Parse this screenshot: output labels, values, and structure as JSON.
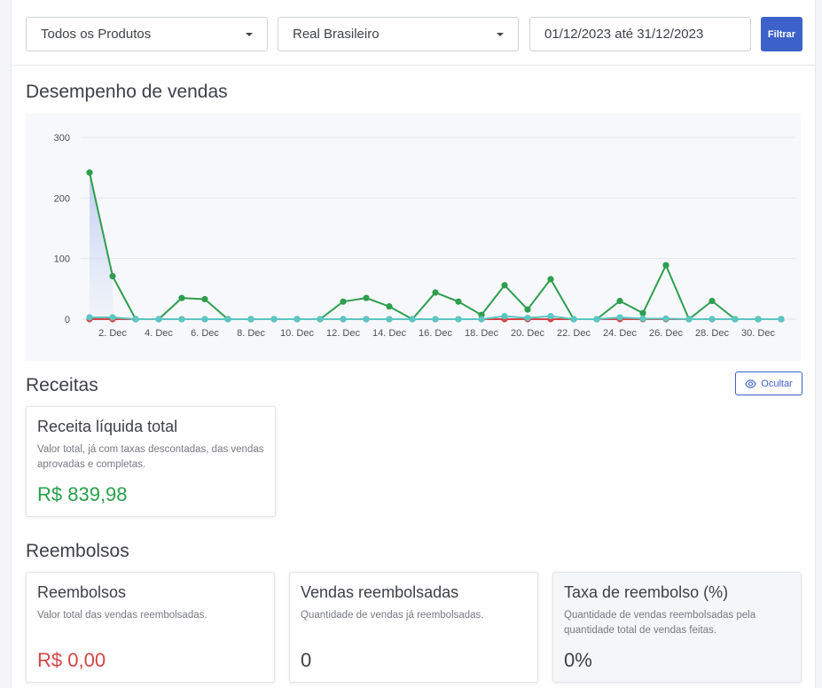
{
  "filters": {
    "product": "Todos os Produtos",
    "currency": "Real Brasileiro",
    "date_range": "01/12/2023 até 31/12/2023",
    "filter_button": "Filtrar"
  },
  "sales_section": {
    "title": "Desempenho de vendas"
  },
  "chart_data": {
    "type": "line",
    "x": [
      1,
      2,
      3,
      4,
      5,
      6,
      7,
      8,
      9,
      10,
      11,
      12,
      13,
      14,
      15,
      16,
      17,
      18,
      19,
      20,
      21,
      22,
      23,
      24,
      25,
      26,
      27,
      28,
      29,
      30,
      31
    ],
    "x_tick_labels": [
      "2. Dec",
      "4. Dec",
      "6. Dec",
      "8. Dec",
      "10. Dec",
      "12. Dec",
      "14. Dec",
      "16. Dec",
      "18. Dec",
      "20. Dec",
      "22. Dec",
      "24. Dec",
      "26. Dec",
      "28. Dec",
      "30. Dec"
    ],
    "x_tick_positions": [
      2,
      4,
      6,
      8,
      10,
      12,
      14,
      16,
      18,
      20,
      22,
      24,
      26,
      28,
      30
    ],
    "ylim": [
      0,
      300
    ],
    "y_ticks": [
      0,
      100,
      200,
      300
    ],
    "grid": true,
    "series": [
      {
        "color": "#2e9e4f",
        "values": [
          242,
          71,
          0,
          0,
          35,
          33,
          0,
          0,
          0,
          0,
          0,
          29,
          35,
          21,
          0,
          44,
          29,
          7,
          56,
          16,
          66,
          0,
          0,
          30,
          10,
          89,
          0,
          30,
          0,
          0,
          0
        ]
      },
      {
        "color": "#d64545",
        "values": [
          0,
          0,
          0,
          0,
          0,
          0,
          0,
          0,
          0,
          0,
          0,
          0,
          0,
          0,
          0,
          0,
          0,
          0,
          0,
          0,
          0,
          0,
          0,
          0,
          0,
          0,
          0,
          0,
          0,
          0,
          0
        ]
      },
      {
        "color": "#5bc6c2",
        "values": [
          3,
          3,
          0,
          0,
          0,
          0,
          0,
          0,
          0,
          0,
          0,
          0,
          0,
          0,
          0,
          0,
          0,
          0,
          5,
          2,
          5,
          0,
          0,
          3,
          1,
          1,
          0,
          0,
          0,
          0,
          0
        ]
      }
    ]
  },
  "revenue_section": {
    "title": "Receitas",
    "hide_button": "Ocultar",
    "card": {
      "title": "Receita líquida total",
      "description": "Valor total, já com taxas descontadas, das vendas aprovadas e completas.",
      "value": "R$ 839,98",
      "value_color": "#28a04a"
    }
  },
  "refunds_section": {
    "title": "Reembolsos",
    "cards": [
      {
        "title": "Reembolsos",
        "description": "Valor total das vendas reembolsadas.",
        "value": "R$ 0,00",
        "value_color": "#d64545"
      },
      {
        "title": "Vendas reembolsadas",
        "description": "Quantidade de vendas já reembolsadas.",
        "value": "0",
        "value_color": "#3d4046"
      },
      {
        "title": "Taxa de reembolso (%)",
        "description": "Quantidade de vendas reembolsadas pela quantidade total de vendas feitas.",
        "value": "0%",
        "value_color": "#3d4046"
      }
    ]
  },
  "icons": {
    "hide": "eye-icon",
    "dropdown": "chevron-down-icon"
  }
}
